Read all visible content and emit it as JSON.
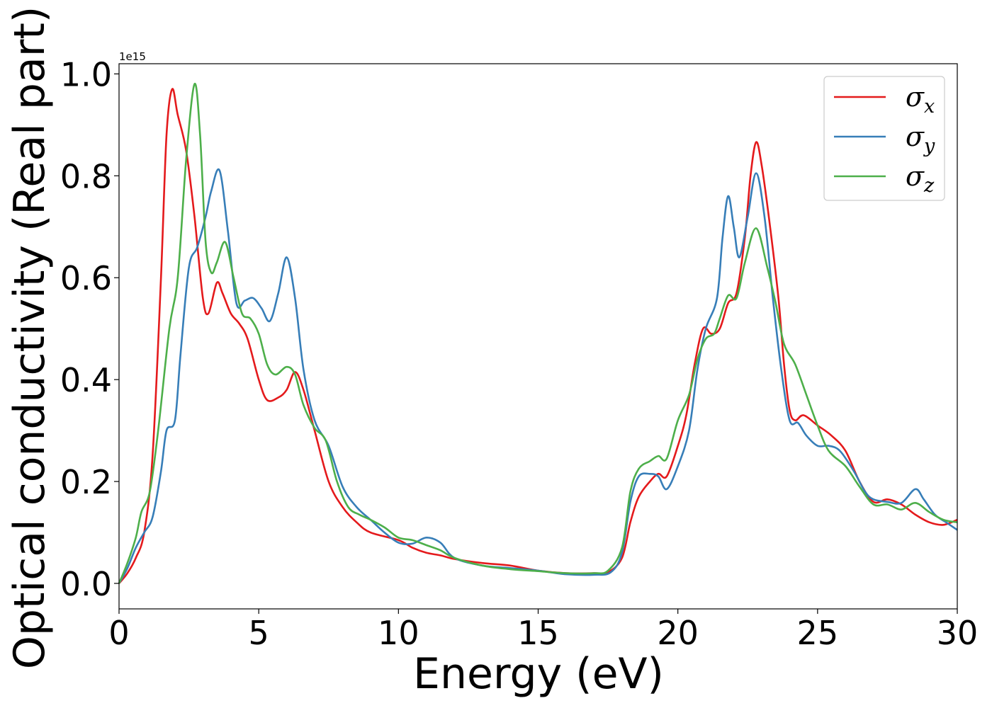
{
  "chart_data": {
    "type": "line",
    "title": "",
    "xlabel": "Energy (eV)",
    "ylabel": "Optical conductivity (Real part)",
    "y_offset_text": "1e15",
    "xlim": [
      0,
      30
    ],
    "ylim": [
      -0.05,
      1.02
    ],
    "x_ticks": [
      0,
      5,
      10,
      15,
      20,
      25,
      30
    ],
    "x_tick_labels": [
      "0",
      "5",
      "10",
      "15",
      "20",
      "25",
      "30"
    ],
    "y_ticks": [
      0.0,
      0.2,
      0.4,
      0.6,
      0.8,
      1.0
    ],
    "y_tick_labels": [
      "0.0",
      "0.2",
      "0.4",
      "0.6",
      "0.8",
      "1.0"
    ],
    "grid": false,
    "legend_position": "top-right",
    "series": [
      {
        "name": "σ",
        "subscript": "x",
        "color": "#e41a1c",
        "points": [
          [
            0,
            0
          ],
          [
            0.3,
            0.02
          ],
          [
            0.6,
            0.05
          ],
          [
            0.9,
            0.1
          ],
          [
            1.2,
            0.25
          ],
          [
            1.5,
            0.6
          ],
          [
            1.7,
            0.88
          ],
          [
            1.9,
            0.97
          ],
          [
            2.1,
            0.92
          ],
          [
            2.4,
            0.85
          ],
          [
            2.7,
            0.72
          ],
          [
            3.0,
            0.56
          ],
          [
            3.2,
            0.53
          ],
          [
            3.5,
            0.59
          ],
          [
            3.7,
            0.57
          ],
          [
            4.0,
            0.53
          ],
          [
            4.3,
            0.51
          ],
          [
            4.6,
            0.48
          ],
          [
            5.0,
            0.4
          ],
          [
            5.3,
            0.36
          ],
          [
            5.7,
            0.365
          ],
          [
            6.0,
            0.38
          ],
          [
            6.3,
            0.415
          ],
          [
            6.6,
            0.38
          ],
          [
            7.0,
            0.3
          ],
          [
            7.5,
            0.2
          ],
          [
            8.0,
            0.15
          ],
          [
            8.5,
            0.12
          ],
          [
            9.0,
            0.1
          ],
          [
            10.0,
            0.085
          ],
          [
            10.5,
            0.07
          ],
          [
            11.0,
            0.06
          ],
          [
            11.5,
            0.055
          ],
          [
            12.0,
            0.048
          ],
          [
            13.0,
            0.04
          ],
          [
            14.0,
            0.035
          ],
          [
            15.0,
            0.025
          ],
          [
            16.0,
            0.02
          ],
          [
            17.0,
            0.02
          ],
          [
            17.5,
            0.022
          ],
          [
            18.0,
            0.05
          ],
          [
            18.3,
            0.12
          ],
          [
            18.6,
            0.17
          ],
          [
            19.0,
            0.2
          ],
          [
            19.3,
            0.215
          ],
          [
            19.6,
            0.21
          ],
          [
            20.0,
            0.27
          ],
          [
            20.3,
            0.33
          ],
          [
            20.6,
            0.43
          ],
          [
            20.9,
            0.5
          ],
          [
            21.2,
            0.49
          ],
          [
            21.5,
            0.5
          ],
          [
            21.8,
            0.55
          ],
          [
            22.1,
            0.57
          ],
          [
            22.4,
            0.68
          ],
          [
            22.6,
            0.8
          ],
          [
            22.8,
            0.866
          ],
          [
            23.0,
            0.82
          ],
          [
            23.3,
            0.7
          ],
          [
            23.6,
            0.56
          ],
          [
            23.8,
            0.43
          ],
          [
            24.0,
            0.34
          ],
          [
            24.2,
            0.32
          ],
          [
            24.5,
            0.33
          ],
          [
            25.0,
            0.31
          ],
          [
            25.5,
            0.29
          ],
          [
            26.0,
            0.26
          ],
          [
            26.5,
            0.2
          ],
          [
            27.0,
            0.16
          ],
          [
            27.5,
            0.165
          ],
          [
            28.0,
            0.155
          ],
          [
            28.5,
            0.135
          ],
          [
            29.0,
            0.12
          ],
          [
            29.5,
            0.115
          ],
          [
            30.0,
            0.125
          ]
        ]
      },
      {
        "name": "σ",
        "subscript": "y",
        "color": "#377eb8",
        "points": [
          [
            0,
            0
          ],
          [
            0.3,
            0.03
          ],
          [
            0.6,
            0.07
          ],
          [
            0.9,
            0.1
          ],
          [
            1.2,
            0.13
          ],
          [
            1.5,
            0.22
          ],
          [
            1.7,
            0.3
          ],
          [
            2.0,
            0.32
          ],
          [
            2.2,
            0.45
          ],
          [
            2.5,
            0.62
          ],
          [
            2.8,
            0.66
          ],
          [
            3.1,
            0.72
          ],
          [
            3.3,
            0.77
          ],
          [
            3.6,
            0.81
          ],
          [
            3.9,
            0.69
          ],
          [
            4.2,
            0.55
          ],
          [
            4.5,
            0.555
          ],
          [
            4.8,
            0.56
          ],
          [
            5.1,
            0.54
          ],
          [
            5.4,
            0.515
          ],
          [
            5.7,
            0.57
          ],
          [
            6.0,
            0.64
          ],
          [
            6.3,
            0.56
          ],
          [
            6.6,
            0.42
          ],
          [
            7.0,
            0.32
          ],
          [
            7.5,
            0.27
          ],
          [
            8.0,
            0.19
          ],
          [
            8.5,
            0.15
          ],
          [
            9.0,
            0.125
          ],
          [
            9.5,
            0.1
          ],
          [
            10.0,
            0.08
          ],
          [
            10.5,
            0.078
          ],
          [
            11.0,
            0.09
          ],
          [
            11.5,
            0.08
          ],
          [
            12.0,
            0.05
          ],
          [
            13.0,
            0.035
          ],
          [
            14.0,
            0.03
          ],
          [
            15.0,
            0.025
          ],
          [
            16.0,
            0.018
          ],
          [
            17.0,
            0.017
          ],
          [
            17.6,
            0.022
          ],
          [
            18.0,
            0.06
          ],
          [
            18.3,
            0.16
          ],
          [
            18.6,
            0.21
          ],
          [
            19.0,
            0.215
          ],
          [
            19.3,
            0.21
          ],
          [
            19.6,
            0.185
          ],
          [
            20.0,
            0.23
          ],
          [
            20.4,
            0.3
          ],
          [
            20.7,
            0.42
          ],
          [
            21.0,
            0.5
          ],
          [
            21.4,
            0.56
          ],
          [
            21.6,
            0.68
          ],
          [
            21.8,
            0.76
          ],
          [
            22.0,
            0.7
          ],
          [
            22.2,
            0.64
          ],
          [
            22.5,
            0.72
          ],
          [
            22.8,
            0.805
          ],
          [
            23.1,
            0.72
          ],
          [
            23.4,
            0.56
          ],
          [
            23.7,
            0.42
          ],
          [
            24.0,
            0.32
          ],
          [
            24.3,
            0.315
          ],
          [
            24.6,
            0.29
          ],
          [
            25.0,
            0.27
          ],
          [
            25.4,
            0.27
          ],
          [
            25.8,
            0.26
          ],
          [
            26.3,
            0.22
          ],
          [
            26.7,
            0.18
          ],
          [
            27.0,
            0.165
          ],
          [
            27.5,
            0.16
          ],
          [
            28.0,
            0.158
          ],
          [
            28.5,
            0.185
          ],
          [
            28.8,
            0.165
          ],
          [
            29.2,
            0.135
          ],
          [
            29.6,
            0.12
          ],
          [
            30.0,
            0.105
          ]
        ]
      },
      {
        "name": "σ",
        "subscript": "z",
        "color": "#4daf4a",
        "points": [
          [
            0,
            0
          ],
          [
            0.3,
            0.04
          ],
          [
            0.6,
            0.09
          ],
          [
            0.8,
            0.14
          ],
          [
            1.1,
            0.18
          ],
          [
            1.4,
            0.3
          ],
          [
            1.8,
            0.5
          ],
          [
            2.1,
            0.6
          ],
          [
            2.4,
            0.83
          ],
          [
            2.7,
            0.98
          ],
          [
            2.9,
            0.88
          ],
          [
            3.1,
            0.67
          ],
          [
            3.3,
            0.61
          ],
          [
            3.5,
            0.63
          ],
          [
            3.8,
            0.67
          ],
          [
            4.1,
            0.6
          ],
          [
            4.4,
            0.53
          ],
          [
            4.7,
            0.52
          ],
          [
            5.0,
            0.49
          ],
          [
            5.3,
            0.43
          ],
          [
            5.6,
            0.41
          ],
          [
            6.0,
            0.425
          ],
          [
            6.3,
            0.41
          ],
          [
            6.6,
            0.35
          ],
          [
            7.0,
            0.305
          ],
          [
            7.4,
            0.28
          ],
          [
            7.8,
            0.2
          ],
          [
            8.2,
            0.15
          ],
          [
            8.6,
            0.135
          ],
          [
            9.0,
            0.125
          ],
          [
            9.5,
            0.11
          ],
          [
            10.0,
            0.09
          ],
          [
            10.5,
            0.085
          ],
          [
            11.0,
            0.075
          ],
          [
            11.5,
            0.065
          ],
          [
            12.0,
            0.05
          ],
          [
            13.0,
            0.035
          ],
          [
            14.0,
            0.028
          ],
          [
            15.0,
            0.024
          ],
          [
            16.0,
            0.02
          ],
          [
            17.0,
            0.02
          ],
          [
            17.5,
            0.025
          ],
          [
            18.0,
            0.07
          ],
          [
            18.3,
            0.18
          ],
          [
            18.6,
            0.225
          ],
          [
            19.0,
            0.24
          ],
          [
            19.3,
            0.25
          ],
          [
            19.6,
            0.245
          ],
          [
            20.0,
            0.32
          ],
          [
            20.4,
            0.37
          ],
          [
            20.7,
            0.44
          ],
          [
            21.0,
            0.48
          ],
          [
            21.3,
            0.49
          ],
          [
            21.5,
            0.52
          ],
          [
            21.8,
            0.565
          ],
          [
            22.1,
            0.56
          ],
          [
            22.4,
            0.63
          ],
          [
            22.8,
            0.697
          ],
          [
            23.2,
            0.62
          ],
          [
            23.5,
            0.55
          ],
          [
            23.8,
            0.47
          ],
          [
            24.2,
            0.43
          ],
          [
            24.6,
            0.37
          ],
          [
            25.0,
            0.31
          ],
          [
            25.4,
            0.26
          ],
          [
            26.0,
            0.23
          ],
          [
            26.5,
            0.19
          ],
          [
            27.0,
            0.155
          ],
          [
            27.5,
            0.155
          ],
          [
            28.0,
            0.145
          ],
          [
            28.5,
            0.158
          ],
          [
            29.0,
            0.14
          ],
          [
            29.5,
            0.125
          ],
          [
            30.0,
            0.12
          ]
        ]
      }
    ]
  }
}
